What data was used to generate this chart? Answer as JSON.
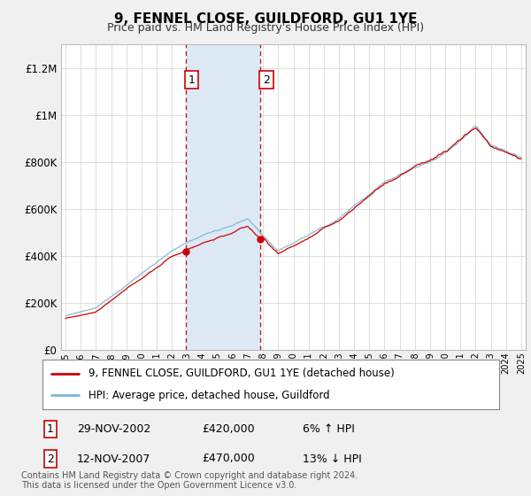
{
  "title": "9, FENNEL CLOSE, GUILDFORD, GU1 1YE",
  "subtitle": "Price paid vs. HM Land Registry's House Price Index (HPI)",
  "ylabel_ticks": [
    "£0",
    "£200K",
    "£400K",
    "£600K",
    "£800K",
    "£1M",
    "£1.2M"
  ],
  "ytick_vals": [
    0,
    200000,
    400000,
    600000,
    800000,
    1000000,
    1200000
  ],
  "ylim": [
    0,
    1300000
  ],
  "hpi_color": "#7ab3d4",
  "price_color": "#cc0000",
  "shade_color": "#dce9f5",
  "vline_color": "#cc0000",
  "sale1": {
    "label": "1",
    "date": "29-NOV-2002",
    "price": "£420,000",
    "hpi": "6% ↑ HPI",
    "year": 2002.917
  },
  "sale2": {
    "label": "2",
    "date": "12-NOV-2007",
    "price": "£470,000",
    "hpi": "13% ↓ HPI",
    "year": 2007.875
  },
  "legend_line1": "9, FENNEL CLOSE, GUILDFORD, GU1 1YE (detached house)",
  "legend_line2": "HPI: Average price, detached house, Guildford",
  "footnote": "Contains HM Land Registry data © Crown copyright and database right 2024.\nThis data is licensed under the Open Government Licence v3.0.",
  "background_color": "#f0f0f0",
  "plot_bg_color": "#ffffff",
  "x_start_year": 1995,
  "x_end_year": 2025
}
